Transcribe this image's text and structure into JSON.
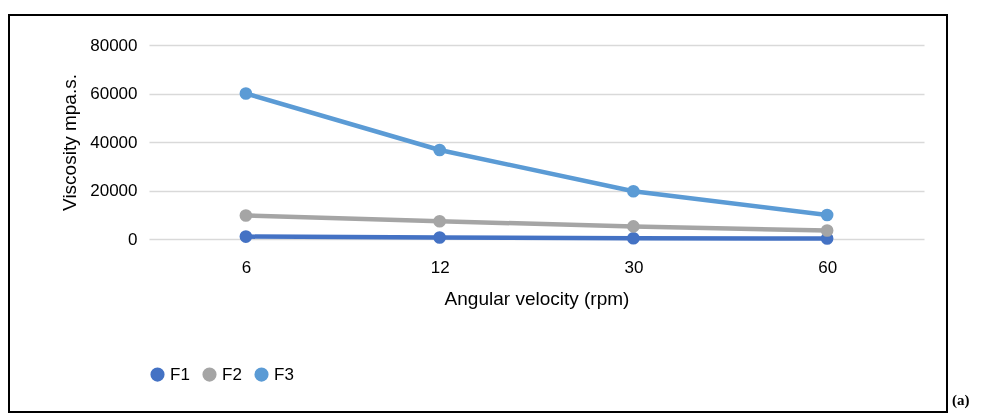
{
  "chart_data": {
    "type": "line",
    "xlabel": "Angular velocity (rpm)",
    "ylabel": "Viscosity mpa.s.",
    "categories": [
      "6",
      "12",
      "30",
      "60"
    ],
    "series": [
      {
        "name": "F1",
        "color": "#4472c4",
        "values": [
          1000,
          600,
          300,
          200
        ]
      },
      {
        "name": "F2",
        "color": "#a5a5a5",
        "values": [
          9700,
          7300,
          5200,
          3500
        ]
      },
      {
        "name": "F3",
        "color": "#5b9bd5",
        "values": [
          60000,
          36700,
          19700,
          9900
        ]
      }
    ],
    "ylim": [
      0,
      80000
    ],
    "yticks": [
      0,
      20000,
      40000,
      60000,
      80000
    ],
    "grid": "y",
    "legend": "bottom",
    "marker": "circle",
    "line_style": "solid",
    "annotations": [
      "(a)"
    ]
  }
}
